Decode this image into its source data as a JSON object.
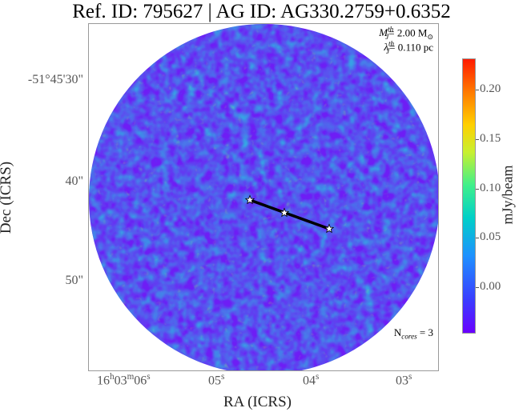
{
  "title": "Ref. ID: 795627 | AG ID: AG330.2759+0.6352",
  "annotations": {
    "mass_label": "M",
    "mass_sub": "J",
    "mass_sup": "th",
    "mass_value": "= 2.00 M",
    "mass_unit_symbol": "⊙",
    "length_label": "λ",
    "length_sub": "J",
    "length_sup": "th",
    "length_value": "= 0.110 pc",
    "ncores_prefix": "N",
    "ncores_sub": "cores",
    "ncores_value": " = 3"
  },
  "axes": {
    "y_title": "Dec (ICRS)",
    "x_title": "RA (ICRS)",
    "y_ticks": [
      "-51°45'30\"",
      "40\"",
      "50\""
    ],
    "x_tick_1_main": "16",
    "x_tick_1_h": "h",
    "x_tick_1_mid": "03",
    "x_tick_1_m": "m",
    "x_tick_1_end": "06",
    "x_tick_1_s": "s",
    "x_tick_2": "05",
    "x_tick_3": "04",
    "x_tick_4": "03",
    "x_tick_s": "s"
  },
  "colorbar": {
    "label": "mJy/beam",
    "ticks": [
      "0.20",
      "0.15",
      "0.10",
      "0.05",
      "0.00"
    ]
  },
  "colors": {
    "cbar_bottom": "#6a00ff",
    "cbar_top": "#ff1a00",
    "core_line": "#000000",
    "core_marker": "#ffffff"
  }
}
